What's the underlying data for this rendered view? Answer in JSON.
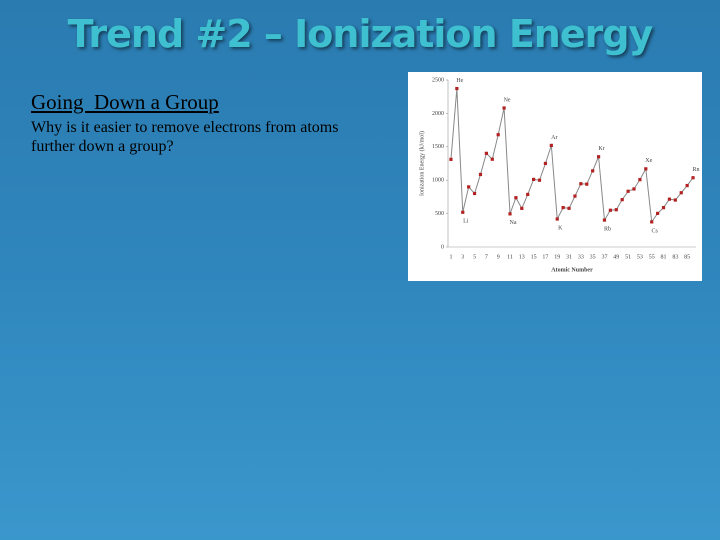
{
  "slide": {
    "title": "Trend #2 – Ionization Energy",
    "heading": "Going  Down a Group",
    "body": "Why is it easier to remove electrons from atoms further down a group?"
  },
  "chart_data": {
    "type": "line",
    "categories": [
      "1",
      null,
      "3",
      null,
      "5",
      null,
      "7",
      null,
      "9",
      null,
      "11",
      null,
      "13",
      null,
      "15",
      null,
      "17",
      null,
      "19",
      null,
      "31",
      null,
      "33",
      null,
      "35",
      null,
      "37",
      null,
      "49",
      null,
      "51",
      null,
      "53",
      null,
      "55",
      null,
      "81",
      null,
      "83",
      null,
      "85",
      null
    ],
    "values": [
      1312,
      2372,
      520,
      900,
      801,
      1086,
      1402,
      1314,
      1681,
      2081,
      496,
      738,
      578,
      787,
      1012,
      1000,
      1251,
      1521,
      419,
      590,
      579,
      762,
      947,
      941,
      1140,
      1351,
      403,
      550,
      558,
      709,
      834,
      869,
      1008,
      1170,
      376,
      503,
      589,
      716,
      703,
      812,
      920,
      1037
    ],
    "point_labels": [
      null,
      "He",
      "Li",
      null,
      null,
      null,
      null,
      null,
      null,
      "Ne",
      "Na",
      null,
      null,
      null,
      null,
      null,
      null,
      "Ar",
      "K",
      null,
      null,
      null,
      null,
      null,
      null,
      "Kr",
      "Rb",
      null,
      null,
      null,
      null,
      null,
      null,
      "Xe",
      "Cs",
      null,
      null,
      null,
      null,
      null,
      null,
      "Rn"
    ],
    "color": "#b22222",
    "line_color": "#888888",
    "ylim": [
      0,
      2500
    ],
    "yticks": [
      0,
      500,
      1000,
      1500,
      2000,
      2500
    ],
    "y_label": "Ionization Energy (kJ/mol)",
    "x_label": "Atomic Number"
  }
}
